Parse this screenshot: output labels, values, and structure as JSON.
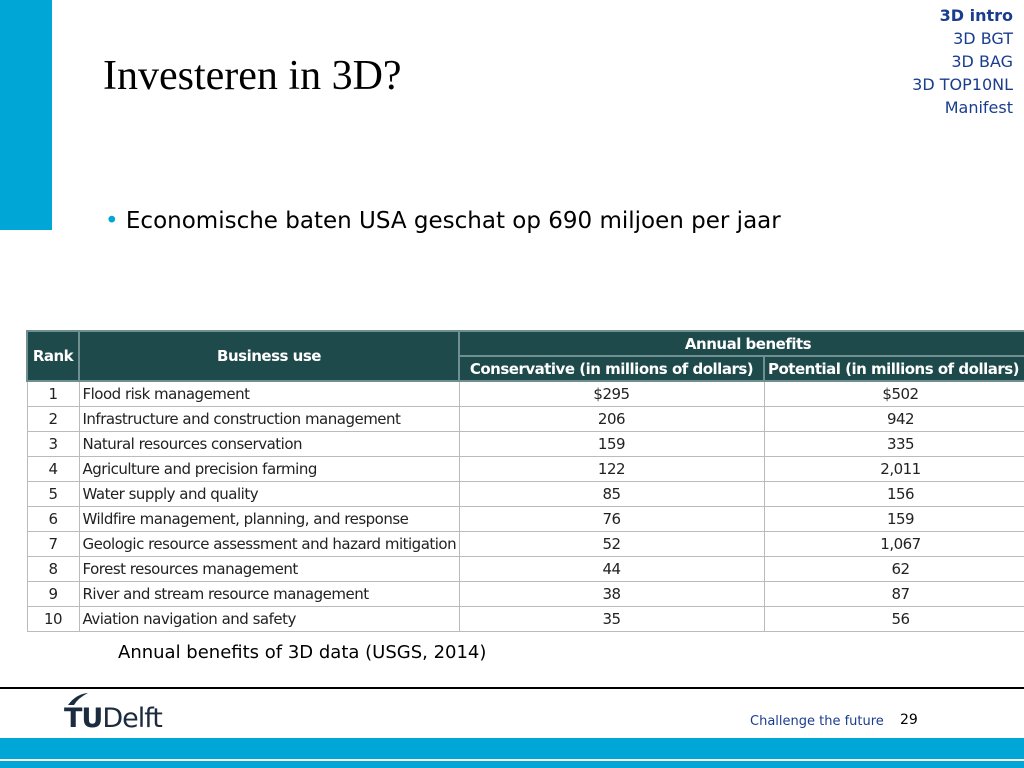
{
  "slide": {
    "title": "Investeren in 3D?",
    "nav": [
      "3D intro",
      "3D BGT",
      "3D BAG",
      "3D TOP10NL",
      "Manifest"
    ],
    "bullet": "Economische baten USA geschat op 690 miljoen per jaar",
    "table": {
      "headers": {
        "rank": "Rank",
        "use": "Business use",
        "group": "Annual benefits",
        "conservative": "Conservative (in millions of dollars)",
        "potential": "Potential (in millions of dollars)"
      },
      "rows": [
        [
          "1",
          "Flood risk management",
          "$295",
          "$502"
        ],
        [
          "2",
          "Infrastructure and construction management",
          "206",
          "942"
        ],
        [
          "3",
          "Natural resources conservation",
          "159",
          "335"
        ],
        [
          "4",
          "Agriculture and precision farming",
          "122",
          "2,011"
        ],
        [
          "5",
          "Water supply and quality",
          "85",
          "156"
        ],
        [
          "6",
          "Wildfire management, planning, and response",
          "76",
          "159"
        ],
        [
          "7",
          "Geologic resource assessment and hazard mitigation",
          "52",
          "1,067"
        ],
        [
          "8",
          "Forest resources management",
          "44",
          "62"
        ],
        [
          "9",
          "River and stream resource management",
          "38",
          "87"
        ],
        [
          "10",
          "Aviation navigation and safety",
          "35",
          "56"
        ]
      ]
    },
    "caption": "Annual benefits of 3D data (USGS, 2014)",
    "footer": {
      "logo_tu": "TU",
      "logo_delft": "Delft",
      "tagline": "Challenge the future",
      "page": "29"
    }
  }
}
